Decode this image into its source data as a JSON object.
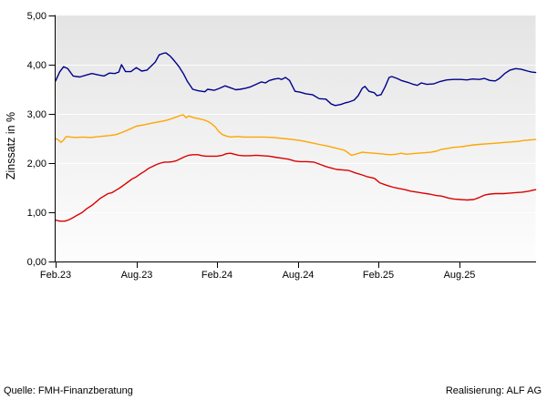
{
  "page": {
    "source_note": "Quelle: FMH-Finanzberatung",
    "realisation_note": "Realisierung: ALF AG"
  },
  "chart_data": {
    "type": "line",
    "title": "",
    "xlabel": "",
    "ylabel": "Zinssatz in %",
    "x_unit": "months since Feb 2023",
    "xlim": [
      0,
      35.7
    ],
    "ylim": [
      0,
      5
    ],
    "grid": "horizontal light lines at each 1,00 step",
    "legend": "none",
    "decimal_style": "comma",
    "plot_bg_top": "#e4e4e4",
    "plot_bg_bottom": "#fdfdfd",
    "axis_color": "#000000",
    "y_ticks": [
      {
        "label": "0,00",
        "value": 0
      },
      {
        "label": "1,00",
        "value": 1
      },
      {
        "label": "2,00",
        "value": 2
      },
      {
        "label": "3,00",
        "value": 3
      },
      {
        "label": "4,00",
        "value": 4
      },
      {
        "label": "5,00",
        "value": 5
      }
    ],
    "x_ticks": [
      {
        "label": "Feb.23",
        "month": 0
      },
      {
        "label": "Aug.23",
        "month": 6
      },
      {
        "label": "Feb.24",
        "month": 12
      },
      {
        "label": "Aug.24",
        "month": 18
      },
      {
        "label": "Feb.25",
        "month": 24
      },
      {
        "label": "Aug.25",
        "month": 30
      }
    ],
    "series": [
      {
        "name": "blue-line",
        "color": "#00008b",
        "points": [
          [
            0,
            3.67
          ],
          [
            0.3,
            3.85
          ],
          [
            0.6,
            3.96
          ],
          [
            0.9,
            3.92
          ],
          [
            1.3,
            3.77
          ],
          [
            1.8,
            3.75
          ],
          [
            2.3,
            3.79
          ],
          [
            2.7,
            3.82
          ],
          [
            3.2,
            3.79
          ],
          [
            3.6,
            3.77
          ],
          [
            4.0,
            3.83
          ],
          [
            4.4,
            3.82
          ],
          [
            4.7,
            3.85
          ],
          [
            4.9,
            4.0
          ],
          [
            5.2,
            3.86
          ],
          [
            5.6,
            3.86
          ],
          [
            6.0,
            3.94
          ],
          [
            6.4,
            3.87
          ],
          [
            6.8,
            3.89
          ],
          [
            7.4,
            4.05
          ],
          [
            7.7,
            4.2
          ],
          [
            8.0,
            4.23
          ],
          [
            8.2,
            4.24
          ],
          [
            8.5,
            4.18
          ],
          [
            8.7,
            4.12
          ],
          [
            9.0,
            4.02
          ],
          [
            9.2,
            3.95
          ],
          [
            9.5,
            3.82
          ],
          [
            9.8,
            3.66
          ],
          [
            10.2,
            3.5
          ],
          [
            10.6,
            3.47
          ],
          [
            11.1,
            3.45
          ],
          [
            11.3,
            3.5
          ],
          [
            11.8,
            3.48
          ],
          [
            12.2,
            3.52
          ],
          [
            12.6,
            3.57
          ],
          [
            12.9,
            3.54
          ],
          [
            13.4,
            3.49
          ],
          [
            13.7,
            3.5
          ],
          [
            14.1,
            3.52
          ],
          [
            14.5,
            3.55
          ],
          [
            14.9,
            3.6
          ],
          [
            15.3,
            3.65
          ],
          [
            15.6,
            3.63
          ],
          [
            15.9,
            3.68
          ],
          [
            16.3,
            3.71
          ],
          [
            16.6,
            3.72
          ],
          [
            16.8,
            3.7
          ],
          [
            17.1,
            3.74
          ],
          [
            17.4,
            3.68
          ],
          [
            17.8,
            3.46
          ],
          [
            18.2,
            3.44
          ],
          [
            18.6,
            3.41
          ],
          [
            19.1,
            3.39
          ],
          [
            19.6,
            3.31
          ],
          [
            20.1,
            3.3
          ],
          [
            20.5,
            3.2
          ],
          [
            20.8,
            3.17
          ],
          [
            21.2,
            3.19
          ],
          [
            21.5,
            3.22
          ],
          [
            21.8,
            3.24
          ],
          [
            22.2,
            3.28
          ],
          [
            22.5,
            3.37
          ],
          [
            22.8,
            3.52
          ],
          [
            23.0,
            3.56
          ],
          [
            23.3,
            3.46
          ],
          [
            23.7,
            3.43
          ],
          [
            23.9,
            3.37
          ],
          [
            24.2,
            3.39
          ],
          [
            24.5,
            3.55
          ],
          [
            24.8,
            3.74
          ],
          [
            25.0,
            3.76
          ],
          [
            25.4,
            3.72
          ],
          [
            25.7,
            3.68
          ],
          [
            26.2,
            3.64
          ],
          [
            26.6,
            3.6
          ],
          [
            26.9,
            3.58
          ],
          [
            27.2,
            3.63
          ],
          [
            27.6,
            3.6
          ],
          [
            28.1,
            3.61
          ],
          [
            28.6,
            3.66
          ],
          [
            29.1,
            3.69
          ],
          [
            29.6,
            3.7
          ],
          [
            30.1,
            3.7
          ],
          [
            30.6,
            3.69
          ],
          [
            31.0,
            3.71
          ],
          [
            31.5,
            3.7
          ],
          [
            31.9,
            3.72
          ],
          [
            32.3,
            3.68
          ],
          [
            32.7,
            3.67
          ],
          [
            33.0,
            3.72
          ],
          [
            33.4,
            3.82
          ],
          [
            33.8,
            3.89
          ],
          [
            34.2,
            3.92
          ],
          [
            34.6,
            3.91
          ],
          [
            35.1,
            3.87
          ],
          [
            35.4,
            3.85
          ],
          [
            35.7,
            3.84
          ]
        ]
      },
      {
        "name": "orange-line",
        "color": "#ffa500",
        "points": [
          [
            0,
            2.5
          ],
          [
            0.2,
            2.47
          ],
          [
            0.4,
            2.42
          ],
          [
            0.6,
            2.47
          ],
          [
            0.8,
            2.54
          ],
          [
            1.1,
            2.53
          ],
          [
            1.5,
            2.52
          ],
          [
            2.0,
            2.53
          ],
          [
            2.6,
            2.52
          ],
          [
            3.3,
            2.54
          ],
          [
            4.0,
            2.56
          ],
          [
            4.5,
            2.58
          ],
          [
            5.0,
            2.63
          ],
          [
            5.6,
            2.7
          ],
          [
            6.0,
            2.75
          ],
          [
            6.6,
            2.78
          ],
          [
            7.1,
            2.81
          ],
          [
            7.5,
            2.83
          ],
          [
            8.1,
            2.86
          ],
          [
            8.5,
            2.89
          ],
          [
            8.9,
            2.93
          ],
          [
            9.3,
            2.97
          ],
          [
            9.5,
            2.98
          ],
          [
            9.7,
            2.92
          ],
          [
            9.9,
            2.96
          ],
          [
            10.3,
            2.92
          ],
          [
            10.7,
            2.9
          ],
          [
            11.0,
            2.88
          ],
          [
            11.3,
            2.85
          ],
          [
            11.6,
            2.8
          ],
          [
            11.9,
            2.73
          ],
          [
            12.1,
            2.65
          ],
          [
            12.4,
            2.58
          ],
          [
            12.7,
            2.55
          ],
          [
            13.0,
            2.53
          ],
          [
            13.5,
            2.54
          ],
          [
            14.0,
            2.53
          ],
          [
            14.7,
            2.53
          ],
          [
            15.5,
            2.53
          ],
          [
            16.2,
            2.52
          ],
          [
            16.9,
            2.5
          ],
          [
            17.6,
            2.48
          ],
          [
            18.2,
            2.46
          ],
          [
            18.9,
            2.42
          ],
          [
            19.6,
            2.38
          ],
          [
            20.3,
            2.34
          ],
          [
            20.9,
            2.3
          ],
          [
            21.5,
            2.26
          ],
          [
            22.0,
            2.16
          ],
          [
            22.3,
            2.18
          ],
          [
            22.8,
            2.22
          ],
          [
            23.2,
            2.21
          ],
          [
            23.7,
            2.2
          ],
          [
            24.1,
            2.19
          ],
          [
            24.5,
            2.18
          ],
          [
            24.9,
            2.17
          ],
          [
            25.3,
            2.18
          ],
          [
            25.7,
            2.2
          ],
          [
            26.1,
            2.18
          ],
          [
            26.5,
            2.19
          ],
          [
            26.9,
            2.2
          ],
          [
            27.4,
            2.21
          ],
          [
            27.9,
            2.22
          ],
          [
            28.3,
            2.24
          ],
          [
            28.7,
            2.28
          ],
          [
            29.2,
            2.3
          ],
          [
            29.6,
            2.32
          ],
          [
            30.1,
            2.33
          ],
          [
            30.6,
            2.35
          ],
          [
            31.1,
            2.37
          ],
          [
            31.5,
            2.38
          ],
          [
            32.0,
            2.39
          ],
          [
            32.5,
            2.4
          ],
          [
            32.9,
            2.41
          ],
          [
            33.4,
            2.42
          ],
          [
            33.9,
            2.43
          ],
          [
            34.4,
            2.44
          ],
          [
            34.8,
            2.46
          ],
          [
            35.3,
            2.47
          ],
          [
            35.7,
            2.48
          ]
        ]
      },
      {
        "name": "red-line",
        "color": "#dd0000",
        "points": [
          [
            0,
            0.84
          ],
          [
            0.3,
            0.82
          ],
          [
            0.7,
            0.82
          ],
          [
            1.0,
            0.85
          ],
          [
            1.3,
            0.89
          ],
          [
            1.6,
            0.94
          ],
          [
            2.0,
            1.0
          ],
          [
            2.3,
            1.07
          ],
          [
            2.7,
            1.14
          ],
          [
            3.0,
            1.21
          ],
          [
            3.3,
            1.28
          ],
          [
            3.6,
            1.33
          ],
          [
            3.9,
            1.38
          ],
          [
            4.2,
            1.4
          ],
          [
            4.5,
            1.45
          ],
          [
            4.8,
            1.5
          ],
          [
            5.1,
            1.56
          ],
          [
            5.4,
            1.62
          ],
          [
            5.7,
            1.68
          ],
          [
            6.0,
            1.72
          ],
          [
            6.3,
            1.78
          ],
          [
            6.6,
            1.83
          ],
          [
            6.9,
            1.89
          ],
          [
            7.2,
            1.93
          ],
          [
            7.5,
            1.97
          ],
          [
            7.8,
            2.0
          ],
          [
            8.1,
            2.02
          ],
          [
            8.4,
            2.02
          ],
          [
            8.7,
            2.03
          ],
          [
            9.0,
            2.05
          ],
          [
            9.3,
            2.09
          ],
          [
            9.6,
            2.13
          ],
          [
            9.9,
            2.16
          ],
          [
            10.2,
            2.17
          ],
          [
            10.6,
            2.17
          ],
          [
            10.9,
            2.15
          ],
          [
            11.2,
            2.14
          ],
          [
            11.6,
            2.14
          ],
          [
            12.0,
            2.14
          ],
          [
            12.4,
            2.16
          ],
          [
            12.7,
            2.19
          ],
          [
            13.0,
            2.2
          ],
          [
            13.3,
            2.18
          ],
          [
            13.6,
            2.16
          ],
          [
            14.0,
            2.15
          ],
          [
            14.4,
            2.15
          ],
          [
            14.9,
            2.16
          ],
          [
            15.4,
            2.15
          ],
          [
            15.9,
            2.14
          ],
          [
            16.3,
            2.12
          ],
          [
            16.8,
            2.1
          ],
          [
            17.3,
            2.08
          ],
          [
            17.8,
            2.04
          ],
          [
            18.2,
            2.03
          ],
          [
            18.7,
            2.03
          ],
          [
            19.2,
            2.02
          ],
          [
            19.7,
            1.97
          ],
          [
            20.1,
            1.93
          ],
          [
            20.5,
            1.9
          ],
          [
            20.9,
            1.87
          ],
          [
            21.4,
            1.86
          ],
          [
            21.8,
            1.85
          ],
          [
            22.3,
            1.8
          ],
          [
            22.8,
            1.76
          ],
          [
            23.2,
            1.72
          ],
          [
            23.7,
            1.69
          ],
          [
            24.1,
            1.6
          ],
          [
            24.6,
            1.55
          ],
          [
            25.1,
            1.51
          ],
          [
            25.6,
            1.48
          ],
          [
            26.0,
            1.46
          ],
          [
            26.4,
            1.43
          ],
          [
            26.9,
            1.41
          ],
          [
            27.3,
            1.39
          ],
          [
            27.8,
            1.37
          ],
          [
            28.3,
            1.34
          ],
          [
            28.7,
            1.33
          ],
          [
            29.2,
            1.29
          ],
          [
            29.6,
            1.27
          ],
          [
            30.1,
            1.26
          ],
          [
            30.6,
            1.25
          ],
          [
            31.1,
            1.26
          ],
          [
            31.5,
            1.3
          ],
          [
            31.9,
            1.35
          ],
          [
            32.3,
            1.37
          ],
          [
            32.7,
            1.38
          ],
          [
            33.3,
            1.38
          ],
          [
            33.8,
            1.39
          ],
          [
            34.2,
            1.4
          ],
          [
            34.7,
            1.41
          ],
          [
            35.2,
            1.43
          ],
          [
            35.5,
            1.45
          ],
          [
            35.7,
            1.46
          ]
        ]
      }
    ]
  }
}
